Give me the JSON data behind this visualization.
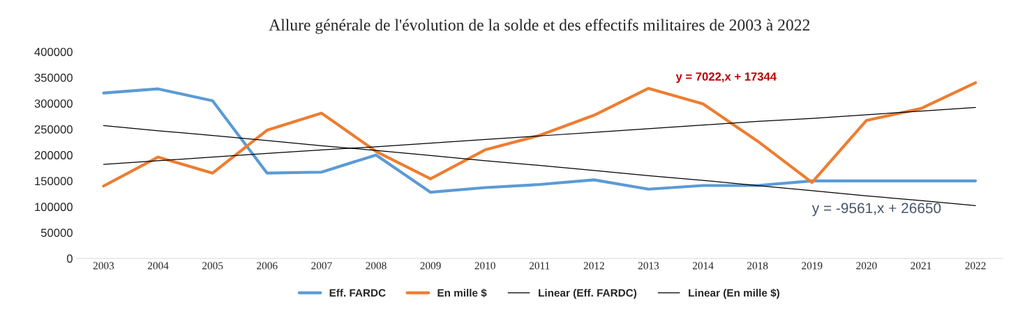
{
  "chart_data": {
    "type": "line",
    "title": "Allure générale de l'évolution de la solde et des effectifs militaires de 2003 à 2022",
    "categories": [
      "2003",
      "2004",
      "2005",
      "2006",
      "2007",
      "2008",
      "2009",
      "2010",
      "2011",
      "2012",
      "2013",
      "2014",
      "2018",
      "2019",
      "2020",
      "2021",
      "2022"
    ],
    "series": [
      {
        "name": "Eff. FARDC",
        "color": "#5b9bd5",
        "values": [
          320000,
          328000,
          305000,
          165000,
          167000,
          200000,
          128000,
          137000,
          143000,
          152000,
          134000,
          141000,
          141000,
          150000,
          150000,
          150000,
          150000
        ]
      },
      {
        "name": "En mille $",
        "color": "#ed7d31",
        "values": [
          140000,
          196000,
          165000,
          248000,
          281000,
          207000,
          154000,
          210000,
          238000,
          277000,
          329000,
          299000,
          227000,
          147000,
          267000,
          290000,
          340000
        ]
      },
      {
        "name": "Linear (Eff. FARDC)",
        "color": "#000000",
        "values": [
          257000,
          247000,
          238000,
          228000,
          218000,
          209000,
          199000,
          189000,
          180000,
          170000,
          160000,
          151000,
          141000,
          131000,
          121000,
          112000,
          102000
        ]
      },
      {
        "name": "Linear (En mille $)",
        "color": "#000000",
        "values": [
          182000,
          189000,
          196000,
          203000,
          210000,
          216000,
          223000,
          230000,
          237000,
          244000,
          251000,
          258000,
          265000,
          271000,
          278000,
          285000,
          292000
        ]
      }
    ],
    "ylim": [
      0,
      400000
    ],
    "yticks": [
      0,
      50000,
      100000,
      150000,
      200000,
      250000,
      300000,
      350000,
      400000
    ],
    "annotations": [
      "y = 7022,x + 17344",
      "y = -9561,x + 26650"
    ],
    "legend": "bottom"
  }
}
